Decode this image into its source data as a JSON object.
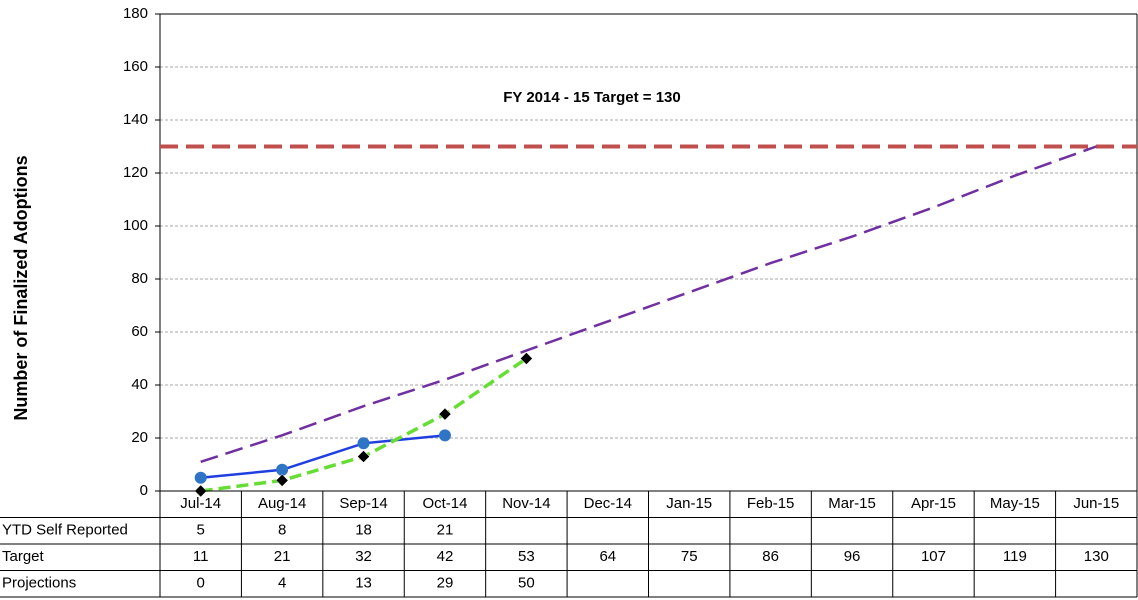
{
  "chart_data": {
    "type": "line",
    "ylabel": "Number of Finalized Adoptions",
    "annotation": "FY 2014 - 15 Target = 130",
    "categories": [
      "Jul-14",
      "Aug-14",
      "Sep-14",
      "Oct-14",
      "Nov-14",
      "Dec-14",
      "Jan-15",
      "Feb-15",
      "Mar-15",
      "Apr-15",
      "May-15",
      "Jun-15"
    ],
    "series": [
      {
        "name": "YTD Self Reported",
        "color": "#1f3fe0",
        "marker_color": "#2e75c6",
        "style": "solid",
        "marker": "circle",
        "values": [
          5,
          8,
          18,
          21,
          null,
          null,
          null,
          null,
          null,
          null,
          null,
          null
        ]
      },
      {
        "name": "Target",
        "color": "#7030a0",
        "style": "dashed",
        "marker": "none",
        "values": [
          11,
          21,
          32,
          42,
          53,
          64,
          75,
          86,
          96,
          107,
          119,
          130
        ]
      },
      {
        "name": "Projections",
        "color": "#66dd33",
        "marker_color": "#000000",
        "style": "dashed",
        "marker": "diamond",
        "values": [
          0,
          4,
          13,
          29,
          50,
          null,
          null,
          null,
          null,
          null,
          null,
          null
        ]
      }
    ],
    "reference_line": {
      "value": 130,
      "color": "#c0504d"
    },
    "ylim": [
      0,
      180
    ],
    "yticks": [
      0,
      20,
      40,
      60,
      80,
      100,
      120,
      140,
      160,
      180
    ],
    "grid": true
  }
}
